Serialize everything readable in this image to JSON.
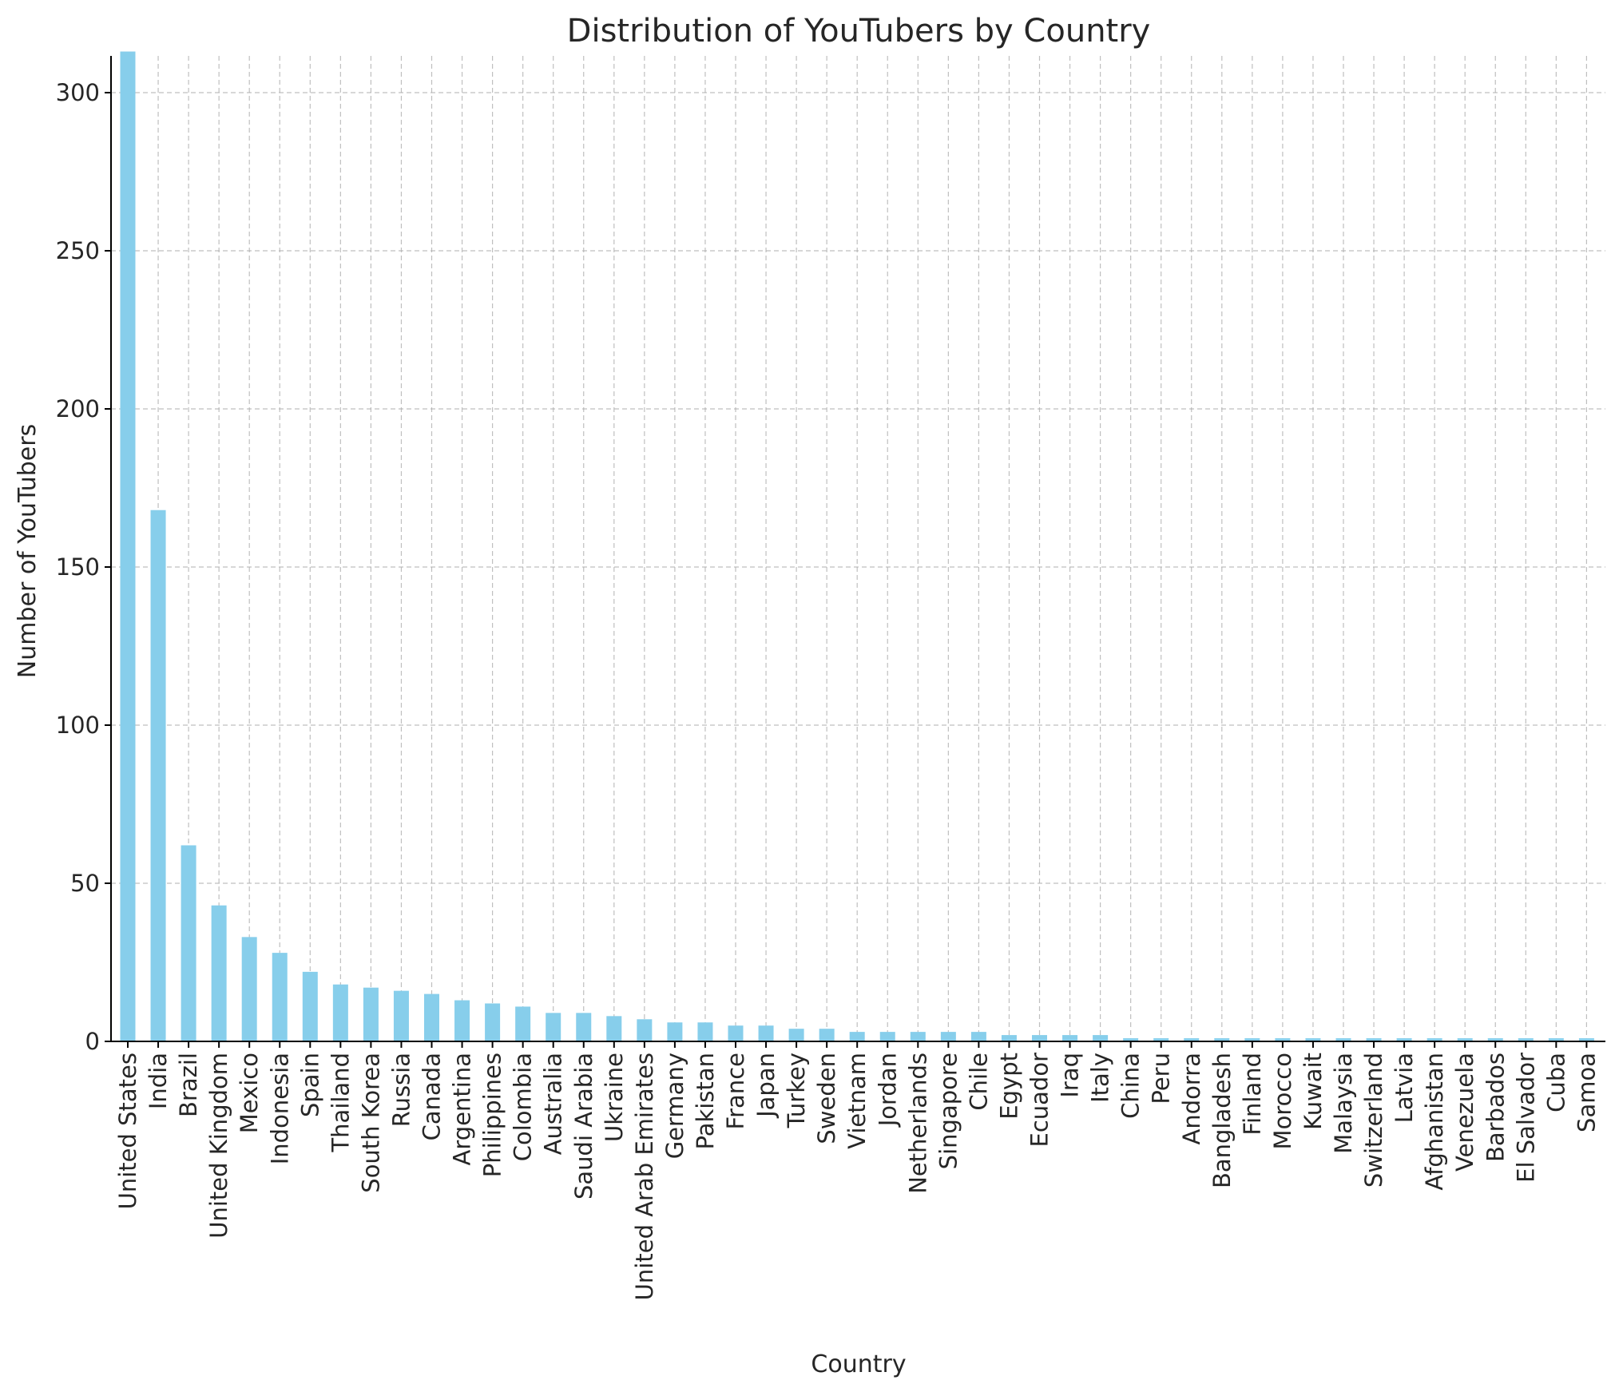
{
  "chart_data": {
    "type": "bar",
    "title": "Distribution of YouTubers by Country",
    "xlabel": "Country",
    "ylabel": "Number of YouTubers",
    "ylim": [
      0,
      330
    ],
    "yticks": [
      0,
      50,
      100,
      150,
      200,
      250,
      300
    ],
    "grid": true,
    "legend": "none",
    "bar_color": "#87ceeb",
    "grid_color": "#b0b0b0",
    "categories": [
      "United States",
      "India",
      "Brazil",
      "United Kingdom",
      "Mexico",
      "Indonesia",
      "Spain",
      "Thailand",
      "South Korea",
      "Russia",
      "Canada",
      "Argentina",
      "Philippines",
      "Colombia",
      "Australia",
      "Saudi Arabia",
      "Ukraine",
      "United Arab Emirates",
      "Germany",
      "Pakistan",
      "France",
      "Japan",
      "Turkey",
      "Sweden",
      "Vietnam",
      "Jordan",
      "Netherlands",
      "Singapore",
      "Chile",
      "Egypt",
      "Ecuador",
      "Iraq",
      "Italy",
      "China",
      "Peru",
      "Andorra",
      "Bangladesh",
      "Finland",
      "Morocco",
      "Kuwait",
      "Malaysia",
      "Switzerland",
      "Latvia",
      "Afghanistan",
      "Venezuela",
      "Barbados",
      "El Salvador",
      "Cuba",
      "Samoa"
    ],
    "values": [
      313,
      168,
      62,
      43,
      33,
      28,
      22,
      18,
      17,
      16,
      15,
      13,
      12,
      11,
      9,
      9,
      8,
      7,
      6,
      6,
      5,
      5,
      4,
      4,
      3,
      3,
      3,
      3,
      3,
      2,
      2,
      2,
      2,
      1,
      1,
      1,
      1,
      1,
      1,
      1,
      1,
      1,
      1,
      1,
      1,
      1,
      1,
      1,
      1
    ]
  }
}
